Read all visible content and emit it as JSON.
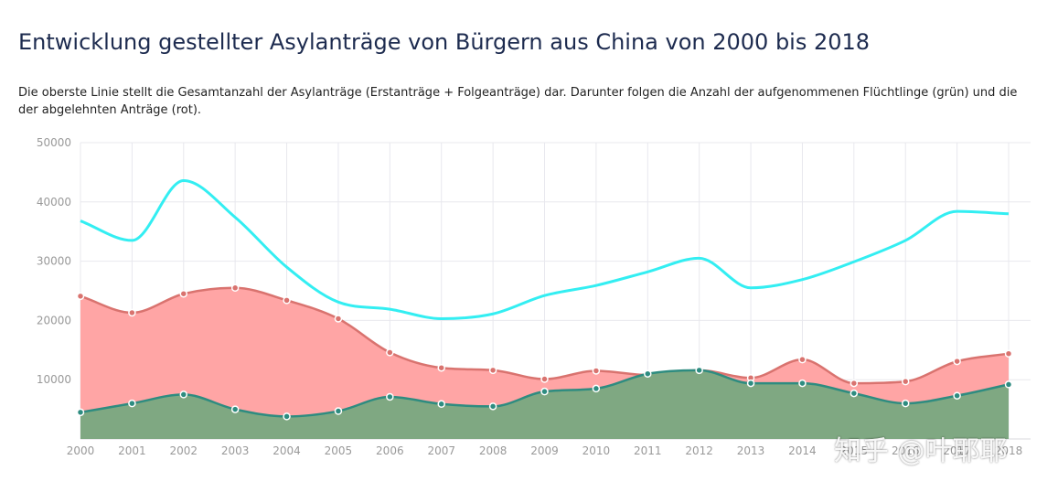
{
  "header": {
    "title": "Entwicklung gestellter Asylanträge von Bürgern aus China von 2000 bis 2018",
    "subtitle": "Die oberste Linie stellt die Gesamtanzahl der Asylanträge (Erstanträge + Folgeanträge) dar. Darunter folgen die Anzahl der aufgenommenen Flüchtlinge (grün) und die der abgelehnten Anträge (rot)."
  },
  "watermark": "知乎 @叶耶耶",
  "colors": {
    "total_line": "#33eef2",
    "rejected_fill": "#ffa5a5",
    "rejected_line": "#d9736f",
    "accepted_fill": "#7fa882",
    "accepted_line": "#2e8c80",
    "grid": "#e8e8ee",
    "tick_text": "#999999"
  },
  "chart_data": {
    "type": "area",
    "x": [
      "2000",
      "2001",
      "2002",
      "2003",
      "2004",
      "2005",
      "2006",
      "2007",
      "2008",
      "2009",
      "2010",
      "2011",
      "2012",
      "2013",
      "2014",
      "2015",
      "2016",
      "2017",
      "2018"
    ],
    "ylim": [
      0,
      50000
    ],
    "yticks": [
      10000,
      20000,
      30000,
      40000,
      50000
    ],
    "grid": true,
    "series": [
      {
        "key": "total",
        "style": "line",
        "values": [
          36800,
          33500,
          43600,
          37400,
          29000,
          23100,
          21900,
          20300,
          21100,
          24200,
          25900,
          28200,
          30500,
          25500,
          26900,
          29900,
          33500,
          38400,
          38000
        ]
      },
      {
        "key": "rejected",
        "style": "area",
        "values": [
          24100,
          21300,
          24500,
          25500,
          23400,
          20300,
          14600,
          12000,
          11600,
          10100,
          11500,
          10800,
          11600,
          10300,
          13400,
          9400,
          9700,
          13100,
          14400
        ]
      },
      {
        "key": "accepted",
        "style": "area",
        "values": [
          4500,
          6000,
          7500,
          5000,
          3800,
          4700,
          7100,
          5900,
          5500,
          8000,
          8500,
          11000,
          11600,
          9400,
          9400,
          7700,
          6000,
          7300,
          9200
        ]
      }
    ]
  }
}
